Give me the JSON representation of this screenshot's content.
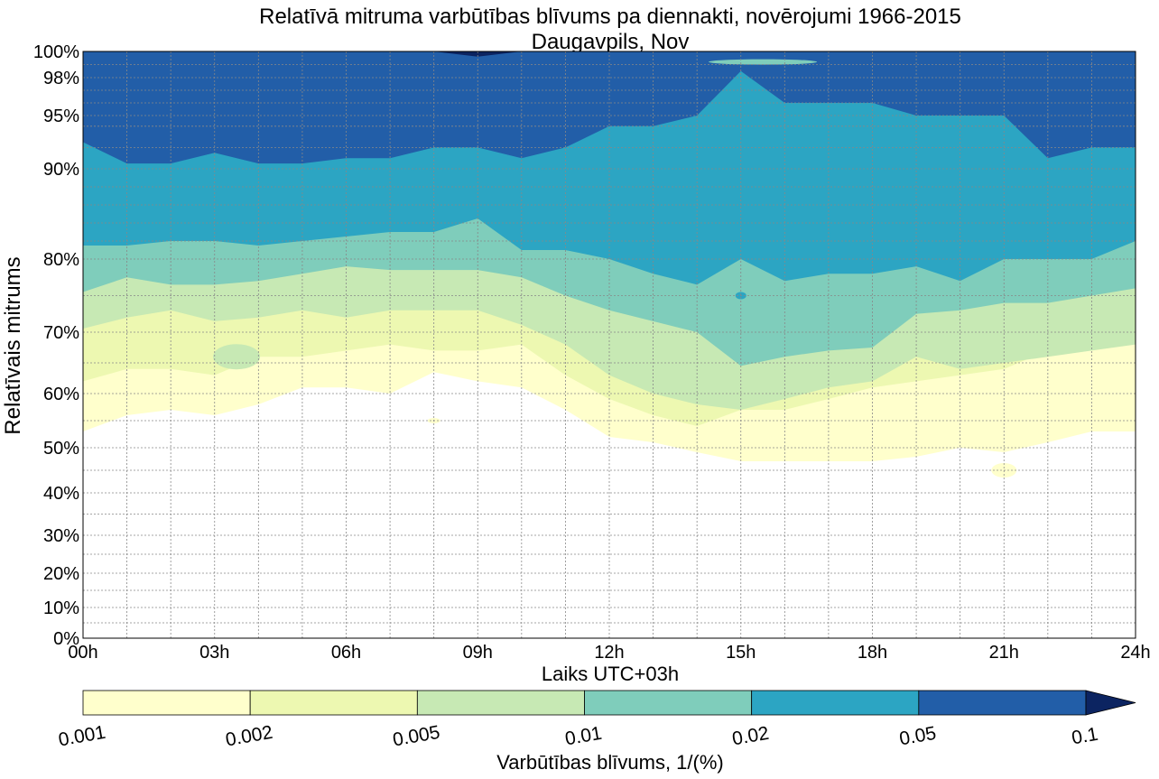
{
  "chart_data": {
    "type": "contour",
    "title": "Relatīvā mitruma varbūtības blīvums pa diennakti, novērojumi 1966-2015",
    "subtitle": "Daugavpils, Nov",
    "xlabel": "Laiks UTC+03h",
    "ylabel": "Relatīvais mitrums",
    "x_ticks": [
      {
        "value": 0,
        "label": "00h"
      },
      {
        "value": 3,
        "label": "03h"
      },
      {
        "value": 6,
        "label": "06h"
      },
      {
        "value": 9,
        "label": "09h"
      },
      {
        "value": 12,
        "label": "12h"
      },
      {
        "value": 15,
        "label": "15h"
      },
      {
        "value": 18,
        "label": "18h"
      },
      {
        "value": 21,
        "label": "21h"
      },
      {
        "value": 24,
        "label": "24h"
      }
    ],
    "xlim": [
      0,
      24
    ],
    "y_scale": "nonlinear (stretched toward 100%)",
    "y_ticks": [
      {
        "value": 0,
        "label": "0%"
      },
      {
        "value": 10,
        "label": "10%"
      },
      {
        "value": 20,
        "label": "20%"
      },
      {
        "value": 30,
        "label": "30%"
      },
      {
        "value": 40,
        "label": "40%"
      },
      {
        "value": 50,
        "label": "50%"
      },
      {
        "value": 60,
        "label": "60%"
      },
      {
        "value": 70,
        "label": "70%"
      },
      {
        "value": 80,
        "label": "80%"
      },
      {
        "value": 90,
        "label": "90%"
      },
      {
        "value": 95,
        "label": "95%"
      },
      {
        "value": 98,
        "label": "98%"
      },
      {
        "value": 100,
        "label": "100%"
      }
    ],
    "y_minor_ticks": [
      5,
      15,
      25,
      35,
      45,
      55,
      65,
      75,
      82,
      84,
      86,
      88,
      92,
      94,
      96,
      97,
      99
    ],
    "ylim": [
      0,
      100
    ],
    "grid": true,
    "x_hours": [
      0,
      1,
      2,
      3,
      4,
      5,
      6,
      7,
      8,
      9,
      10,
      11,
      12,
      13,
      14,
      15,
      16,
      17,
      18,
      19,
      20,
      21,
      22,
      23,
      24
    ],
    "contour_boundaries": [
      {
        "density": 0.001,
        "rh": [
          53,
          56,
          57,
          56,
          58,
          61,
          61,
          60,
          63.5,
          62,
          61,
          57,
          52,
          51,
          49,
          47,
          47,
          47,
          47,
          48,
          50,
          49,
          51,
          53,
          53
        ]
      },
      {
        "density": 0.002,
        "rh": [
          62,
          64,
          64,
          63,
          66,
          66,
          67,
          68,
          67,
          67,
          68,
          63,
          59,
          56,
          54,
          57,
          57,
          59,
          61,
          62,
          63,
          64,
          67,
          70,
          70
        ]
      },
      {
        "density": 0.005,
        "rh": [
          70.5,
          72,
          73,
          71.5,
          72,
          73,
          72,
          73,
          73,
          73,
          71,
          68,
          63,
          60,
          58,
          57,
          59,
          61,
          62,
          66,
          64,
          65,
          66,
          67,
          68
        ]
      },
      {
        "density": 0.01,
        "rh": [
          75.5,
          77.5,
          76.5,
          76.5,
          77,
          78,
          79,
          78.5,
          78.5,
          78.5,
          77.5,
          75,
          73,
          71.5,
          70,
          64.5,
          66,
          67,
          67.5,
          72.5,
          73,
          74,
          74,
          75,
          76
        ]
      },
      {
        "density": 0.02,
        "rh": [
          81.5,
          81.5,
          82,
          82,
          81.5,
          82,
          82.5,
          83,
          83,
          84.5,
          81,
          81,
          80,
          78,
          76.5,
          80,
          77,
          78,
          78,
          79,
          77,
          80,
          80,
          80,
          82
        ]
      },
      {
        "density": 0.05,
        "rh": [
          92.5,
          90.5,
          90.5,
          91.5,
          90.5,
          90.5,
          91,
          91,
          92,
          92,
          91,
          92,
          94,
          94,
          95,
          98.5,
          96,
          96,
          96,
          95,
          95,
          95,
          91,
          92,
          92
        ]
      },
      {
        "density": 0.1,
        "rh": [
          100,
          100,
          100,
          100,
          100,
          100,
          100,
          100,
          100,
          99.6,
          100,
          100,
          100,
          100,
          100,
          100,
          100,
          100,
          100,
          100,
          100,
          100,
          100,
          100,
          100
        ]
      }
    ],
    "pockets": [
      {
        "density_band": "0.005-0.01",
        "hour": 3.5,
        "rh": 66,
        "note": "light patch near 03h-04h"
      },
      {
        "density_band": "0.02-0.05",
        "hour": 15,
        "rh": 75,
        "note": "small spot"
      },
      {
        "density_band": "0.001-0.002",
        "hour": 21,
        "rh": 45,
        "note": "small island"
      },
      {
        "density_band": "0.001-0.002",
        "hour": 8,
        "rh": 55,
        "note": "tiny speck"
      },
      {
        "density_band": "0.01-0.02",
        "hour": 15.5,
        "rh": 99.2,
        "note": "thin sliver near top"
      }
    ],
    "colorbar": {
      "label": "Varbūtības blīvums, 1/(%)",
      "levels": [
        {
          "label": "0.001",
          "value": 0.001
        },
        {
          "label": "0.002",
          "value": 0.002
        },
        {
          "label": "0.005",
          "value": 0.005
        },
        {
          "label": "0.01",
          "value": 0.01
        },
        {
          "label": "0.02",
          "value": 0.02
        },
        {
          "label": "0.05",
          "value": 0.05
        },
        {
          "label": "0.1",
          "value": 0.1
        }
      ],
      "colors": [
        "#ffffcc",
        "#edf8b1",
        "#c7e9b4",
        "#7fcdbb",
        "#2ca5c3",
        "#225ea8",
        "#0c2461"
      ],
      "extend": "max"
    }
  }
}
